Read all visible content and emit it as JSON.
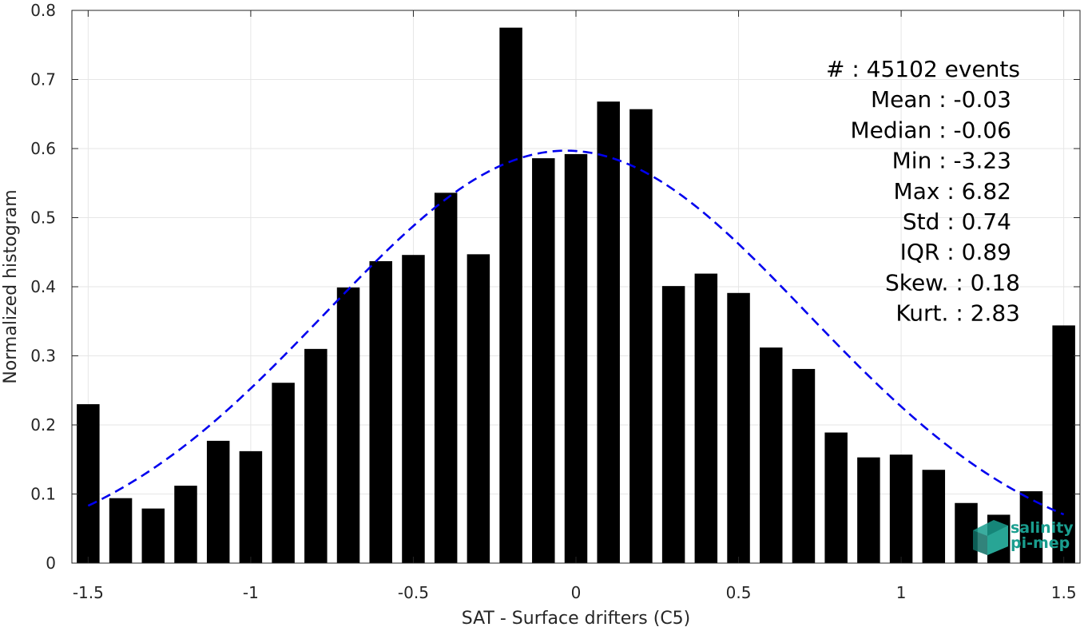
{
  "chart_data": {
    "type": "bar",
    "xlabel": "SAT - Surface drifters (C5)",
    "ylabel": "Normalized histogram",
    "xlim": [
      -1.55,
      1.55
    ],
    "ylim": [
      0,
      0.8
    ],
    "xticks": [
      -1.5,
      -1,
      -0.5,
      0,
      0.5,
      1,
      1.5
    ],
    "xtick_labels": [
      "-1.5",
      "-1",
      "-0.5",
      "0",
      "0.5",
      "1",
      "1.5"
    ],
    "yticks": [
      0,
      0.1,
      0.2,
      0.3,
      0.4,
      0.5,
      0.6,
      0.7,
      0.8
    ],
    "ytick_labels": [
      "0",
      "0.1",
      "0.2",
      "0.3",
      "0.4",
      "0.5",
      "0.6",
      "0.7",
      "0.8"
    ],
    "grid": true,
    "bar_width": 0.07,
    "bars": {
      "x": [
        -1.5,
        -1.4,
        -1.3,
        -1.2,
        -1.1,
        -1.0,
        -0.9,
        -0.8,
        -0.7,
        -0.6,
        -0.5,
        -0.4,
        -0.3,
        -0.2,
        -0.1,
        0.0,
        0.1,
        0.2,
        0.3,
        0.4,
        0.5,
        0.6,
        0.7,
        0.8,
        0.9,
        1.0,
        1.1,
        1.2,
        1.3,
        1.4,
        1.5
      ],
      "values": [
        0.23,
        0.094,
        0.079,
        0.112,
        0.177,
        0.162,
        0.261,
        0.31,
        0.399,
        0.437,
        0.446,
        0.536,
        0.447,
        0.775,
        0.586,
        0.592,
        0.668,
        0.657,
        0.401,
        0.419,
        0.391,
        0.312,
        0.281,
        0.189,
        0.153,
        0.157,
        0.135,
        0.087,
        0.07,
        0.104,
        0.344
      ],
      "color": "#000000"
    },
    "fit": {
      "type": "gaussian",
      "mean": -0.03,
      "std": 0.74,
      "peak": 0.597,
      "x_range": [
        -1.5,
        1.5
      ],
      "color": "#0000ee",
      "style": "dashed"
    },
    "stats": [
      {
        "text": "#  : 45102 events"
      },
      {
        "text": "Mean : -0.03"
      },
      {
        "text": "Median : -0.06"
      },
      {
        "text": "Min : -3.23"
      },
      {
        "text": "Max : 6.82"
      },
      {
        "text": "Std : 0.74"
      },
      {
        "text": "IQR : 0.89"
      },
      {
        "text": "Skew. : 0.18"
      },
      {
        "text": "Kurt. : 2.83"
      }
    ],
    "logo": {
      "line1": "salinity",
      "line2": "pi-mep",
      "color": "#1a9e8f"
    }
  }
}
